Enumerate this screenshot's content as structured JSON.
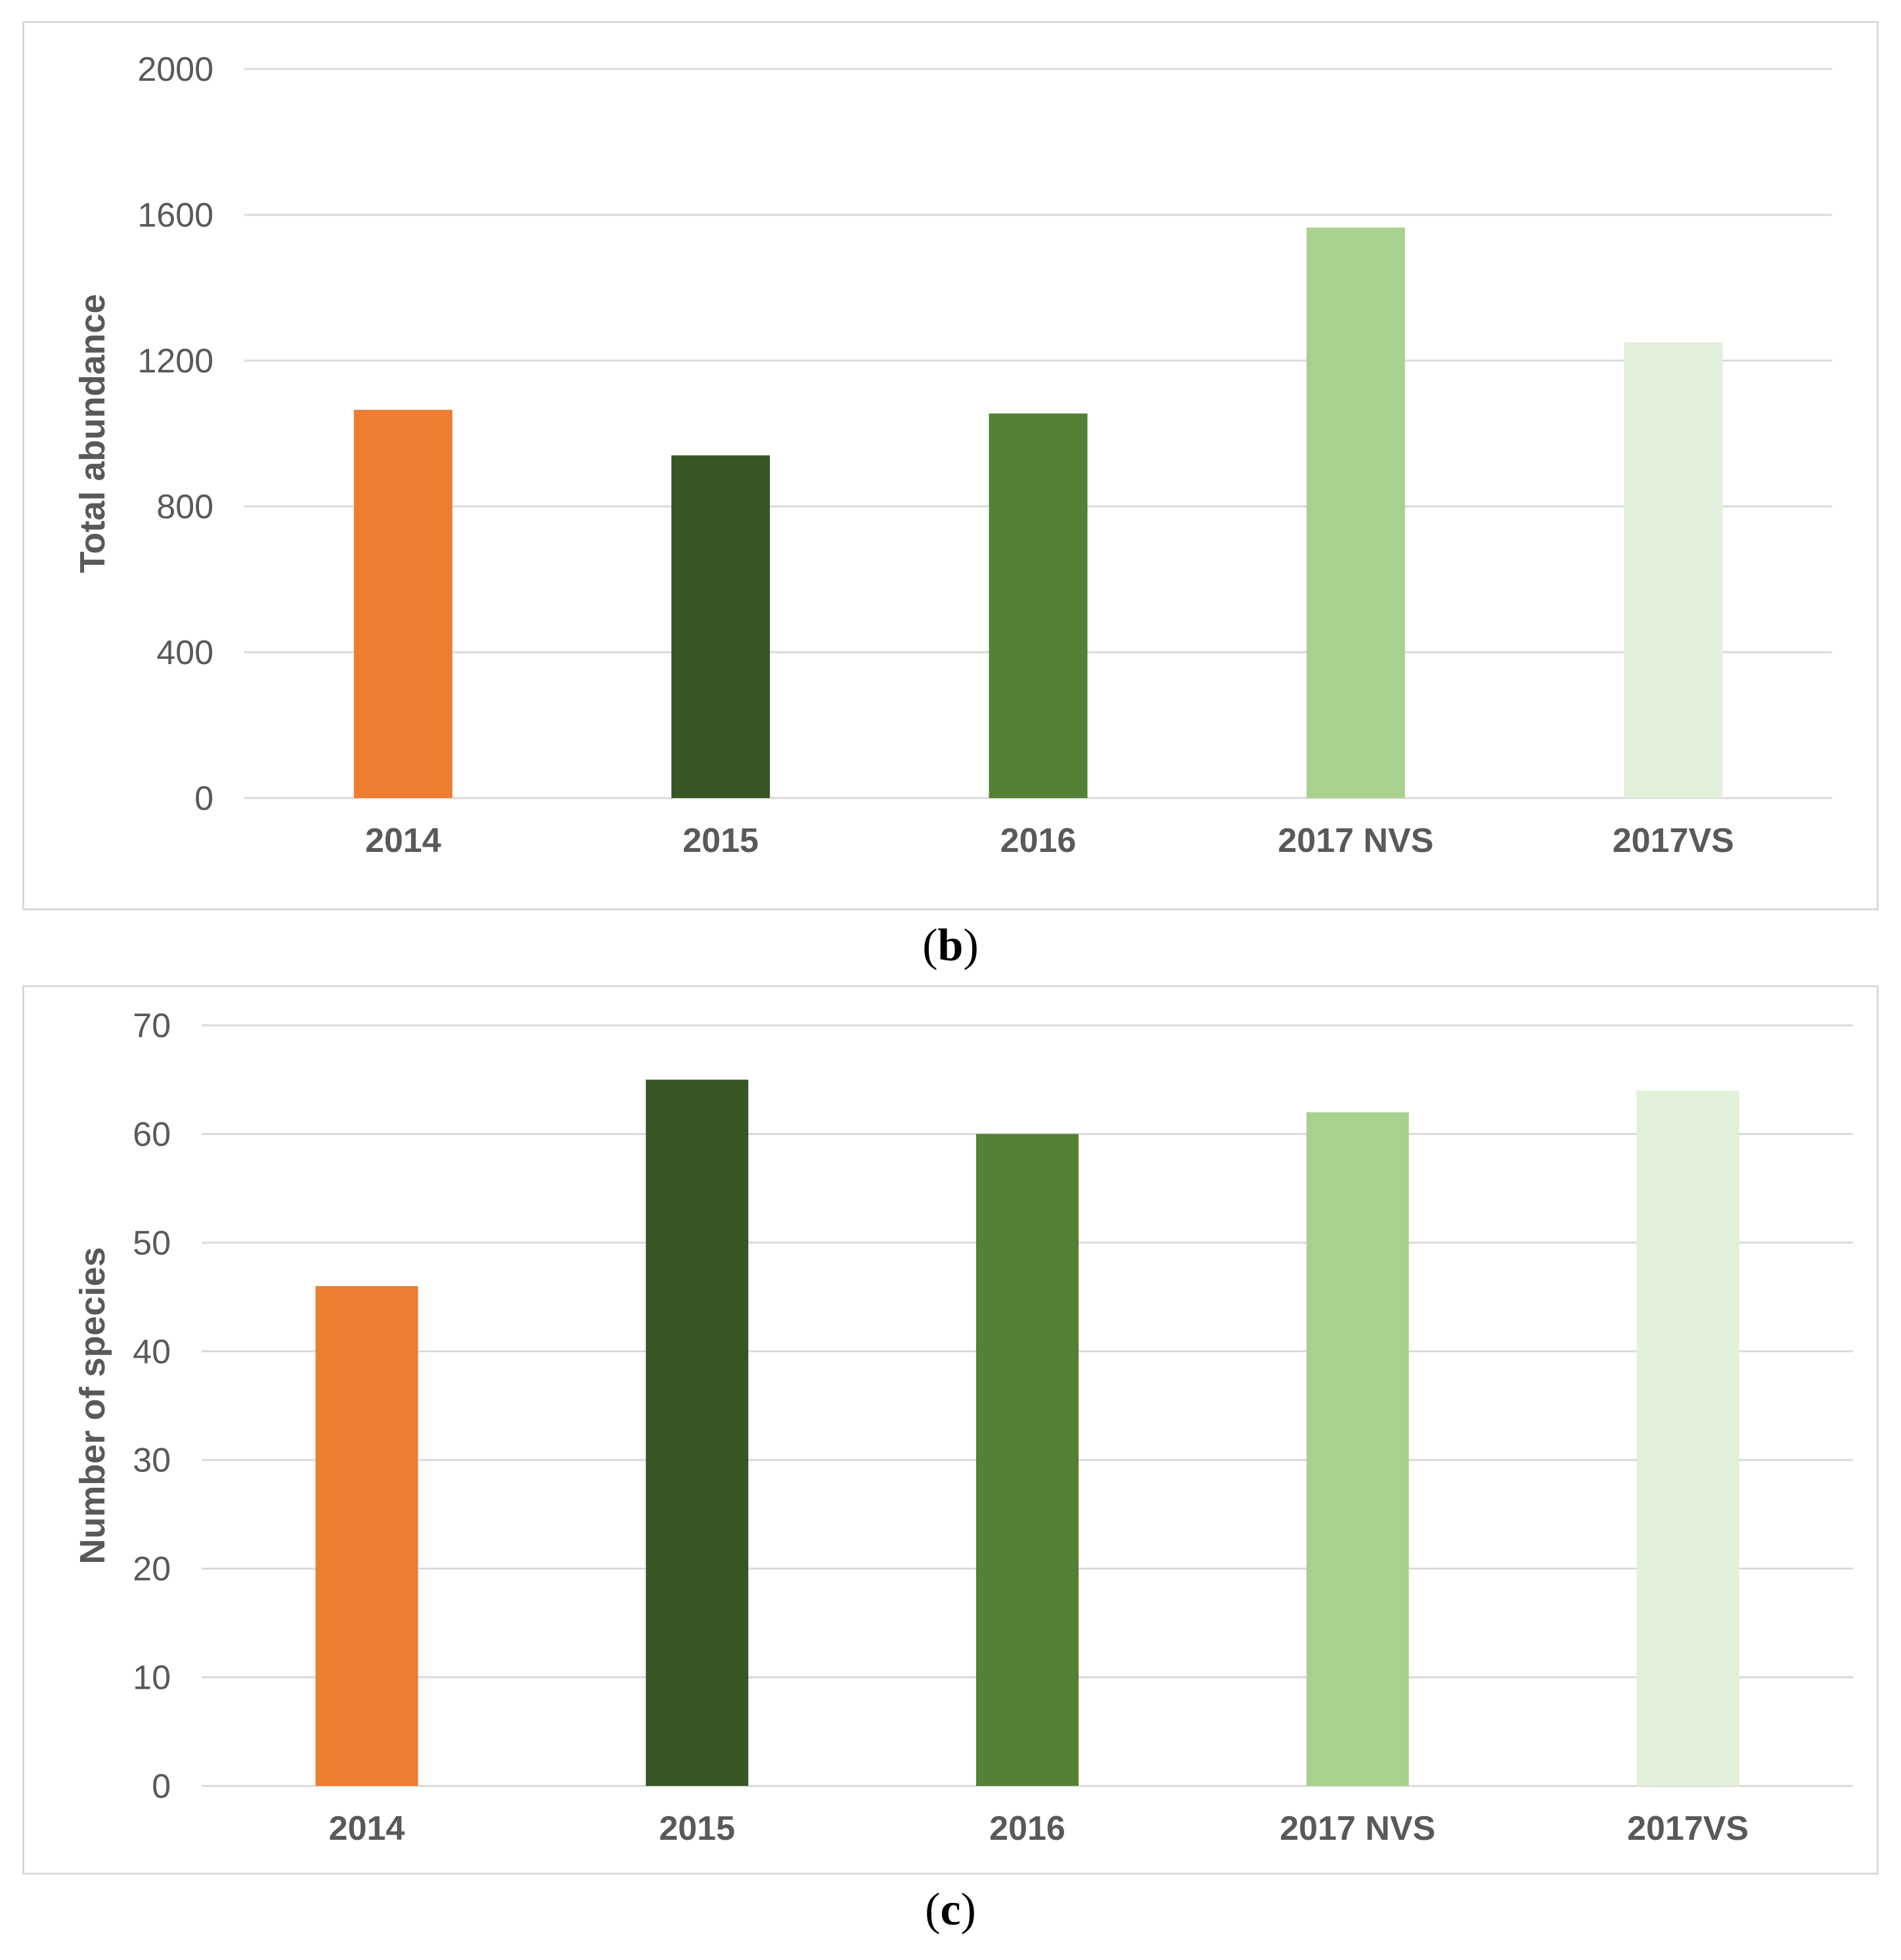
{
  "chart_data": [
    {
      "type": "bar",
      "panel_label": "b",
      "title": "",
      "xlabel": "",
      "ylabel": "Total abundance",
      "categories": [
        "2014",
        "2015",
        "2016",
        "2017 NVS",
        "2017VS"
      ],
      "values": [
        1065,
        940,
        1055,
        1565,
        1250
      ],
      "colors": [
        "#ED7D31",
        "#375623",
        "#538135",
        "#A9D18E",
        "#E2EFDA"
      ],
      "ylim": [
        0,
        2000
      ],
      "yticks": [
        0,
        400,
        800,
        1200,
        1600,
        2000
      ],
      "grid": true
    },
    {
      "type": "bar",
      "panel_label": "c",
      "title": "",
      "xlabel": "",
      "ylabel": "Number of species",
      "categories": [
        "2014",
        "2015",
        "2016",
        "2017 NVS",
        "2017VS"
      ],
      "values": [
        46,
        65,
        60,
        62,
        64
      ],
      "colors": [
        "#ED7D31",
        "#375623",
        "#538135",
        "#A9D18E",
        "#E2EFDA"
      ],
      "ylim": [
        0,
        70
      ],
      "yticks": [
        0,
        10,
        20,
        30,
        40,
        50,
        60,
        70
      ],
      "grid": true
    }
  ],
  "colors": {
    "grid": "#d9d9d9",
    "text": "#595959",
    "border": "#d9d9d9"
  }
}
